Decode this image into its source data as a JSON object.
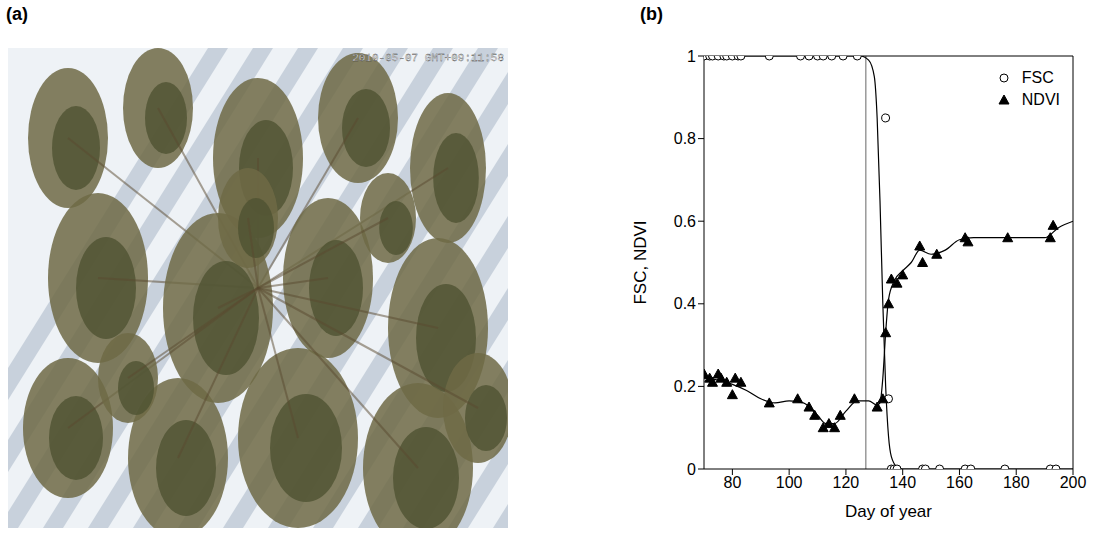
{
  "panel_a": {
    "label": "(a)",
    "timestamp": "2010-05-07 GMT+09:11:58"
  },
  "panel_b": {
    "label": "(b)"
  },
  "chart_data": {
    "type": "scatter",
    "x_label": "Day of year",
    "y_label": "FSC, NDVI",
    "xlim": [
      70,
      200
    ],
    "xticks": [
      80,
      100,
      120,
      140,
      160,
      180,
      200
    ],
    "ylim": [
      0,
      1
    ],
    "yticks": [
      0,
      0.2,
      0.4,
      0.6,
      0.8,
      1
    ],
    "grid": false,
    "legend": "upper right",
    "reference_line_x": 127,
    "series": [
      {
        "name": "FSC",
        "color": "#000000",
        "marker": "circle",
        "x": [
          70,
          72,
          73,
          75,
          77,
          78,
          80,
          82,
          83,
          93,
          104,
          107,
          110,
          112,
          115,
          119,
          124,
          134,
          135,
          136,
          137,
          138,
          147,
          148,
          153,
          162,
          164,
          176,
          192,
          194
        ],
        "values": [
          1,
          1,
          1,
          1,
          1,
          1,
          1,
          1,
          1,
          1,
          1,
          1,
          1,
          1,
          1,
          1,
          1,
          0.85,
          0.17,
          0,
          0,
          0,
          0,
          0,
          0,
          0,
          0,
          0,
          0,
          0
        ],
        "fit": {
          "x": [
            70,
            125,
            128,
            130,
            131,
            132,
            133,
            134,
            135,
            136,
            138,
            140,
            200
          ],
          "values": [
            1,
            1,
            0.99,
            0.95,
            0.85,
            0.65,
            0.4,
            0.2,
            0.08,
            0.03,
            0.005,
            0,
            0
          ]
        }
      },
      {
        "name": "NDVI",
        "color": "#000000",
        "marker": "triangle",
        "x": [
          70,
          72,
          73,
          75,
          76,
          78,
          80,
          81,
          83,
          93,
          103,
          107,
          109,
          112,
          114,
          116,
          118,
          123,
          131,
          133,
          134,
          135,
          136,
          138,
          140,
          146,
          147,
          152,
          162,
          163,
          177,
          192,
          193
        ],
        "values": [
          0.23,
          0.22,
          0.21,
          0.23,
          0.22,
          0.21,
          0.18,
          0.22,
          0.21,
          0.16,
          0.17,
          0.15,
          0.13,
          0.1,
          0.11,
          0.1,
          0.13,
          0.17,
          0.15,
          0.17,
          0.33,
          0.4,
          0.46,
          0.45,
          0.47,
          0.54,
          0.5,
          0.52,
          0.56,
          0.55,
          0.56,
          0.56,
          0.59
        ],
        "fit": {
          "x": [
            70,
            75,
            80,
            85,
            90,
            95,
            100,
            105,
            110,
            113,
            116,
            120,
            124,
            128,
            131,
            132,
            133,
            134,
            135,
            137,
            140,
            143,
            146,
            150,
            155,
            160,
            165,
            170,
            180,
            190,
            195,
            200
          ],
          "values": [
            0.22,
            0.215,
            0.205,
            0.19,
            0.17,
            0.16,
            0.165,
            0.16,
            0.13,
            0.11,
            0.11,
            0.14,
            0.165,
            0.165,
            0.155,
            0.16,
            0.22,
            0.33,
            0.41,
            0.455,
            0.48,
            0.5,
            0.53,
            0.52,
            0.53,
            0.555,
            0.56,
            0.56,
            0.56,
            0.56,
            0.585,
            0.6
          ]
        }
      }
    ]
  }
}
